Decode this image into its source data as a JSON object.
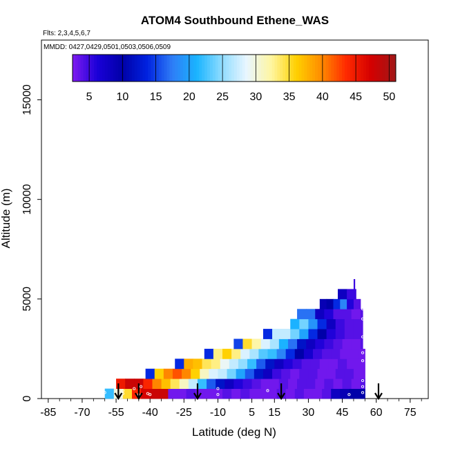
{
  "chart_data": {
    "type": "heatmap",
    "title": "ATOM4 Southbound Ethene_WAS",
    "flights_label": "Flts: 2,3,4,5,6,7",
    "dates_label": "MMDD: 0427,0429,0501,0503,0506,0509",
    "xlabel": "Latitude (deg N)",
    "ylabel": "Altitude (m)",
    "xlim": [
      -88,
      83
    ],
    "ylim": [
      0,
      18000
    ],
    "x_ticks": [
      -85,
      -70,
      -55,
      -40,
      -25,
      -10,
      5,
      15,
      30,
      45,
      60,
      75
    ],
    "y_ticks": [
      0,
      5000,
      10000,
      15000
    ],
    "colorbar": {
      "min": 2.5,
      "max": 51,
      "ticks": [
        5,
        10,
        15,
        20,
        25,
        30,
        35,
        40,
        45,
        50
      ],
      "stops": [
        "#7f1cf0",
        "#1a00d8",
        "#0000a8",
        "#0022e0",
        "#2e7cf6",
        "#1ab4ff",
        "#8fdcff",
        "#e9f6ff",
        "#fff6a0",
        "#ffd000",
        "#ff8c00",
        "#ff2a00",
        "#d40000",
        "#a01818"
      ]
    },
    "layers": [
      {
        "alt_bottom": 0,
        "alt_top": 500,
        "lat_start": -60,
        "lat_end": 55,
        "step": 4,
        "values": [
          22,
          30,
          35,
          44,
          47,
          48,
          48,
          3,
          3,
          4,
          3,
          3,
          3,
          4,
          3,
          4,
          3,
          3,
          3,
          4,
          3,
          4,
          3,
          3,
          4,
          8,
          9,
          10,
          10
        ]
      },
      {
        "alt_bottom": 500,
        "alt_top": 1000,
        "lat_start": -55,
        "lat_end": 55,
        "step": 4,
        "values": [
          45,
          48,
          48,
          44,
          40,
          37,
          34,
          31,
          27,
          22,
          16,
          12,
          8,
          6,
          5,
          4,
          3,
          3,
          4,
          3,
          4,
          4,
          3,
          4,
          3,
          4,
          3,
          4
        ]
      },
      {
        "alt_bottom": 1000,
        "alt_top": 1500,
        "lat_start": -42,
        "lat_end": 55,
        "step": 4,
        "values": [
          14,
          36,
          40,
          42,
          40,
          36,
          31,
          28,
          27,
          24,
          20,
          16,
          12,
          8,
          5,
          4,
          3,
          4,
          4,
          3,
          3,
          4,
          4,
          3,
          3
        ]
      },
      {
        "alt_bottom": 1500,
        "alt_top": 2000,
        "lat_start": -29,
        "lat_end": 55,
        "step": 4,
        "values": [
          14,
          38,
          37,
          34,
          33,
          29,
          27,
          25,
          22,
          16,
          12,
          8,
          6,
          5,
          4,
          4,
          3,
          3,
          4,
          3,
          3,
          3
        ]
      },
      {
        "alt_bottom": 2000,
        "alt_top": 2500,
        "lat_start": -16,
        "lat_end": 55,
        "step": 4,
        "values": [
          14,
          33,
          36,
          33,
          28,
          26,
          23,
          22,
          18,
          14,
          10,
          7,
          5,
          4,
          4,
          3,
          3,
          3
        ]
      },
      {
        "alt_bottom": 2500,
        "alt_top": 3000,
        "lat_start": -3,
        "lat_end": 54,
        "step": 4,
        "values": [
          15,
          35,
          32,
          28,
          26,
          21,
          17,
          12,
          8,
          6,
          5,
          4,
          3,
          3,
          4
        ]
      },
      {
        "alt_bottom": 3000,
        "alt_top": 3500,
        "lat_start": 10,
        "lat_end": 54,
        "step": 4,
        "values": [
          14,
          27,
          27,
          24,
          20,
          14,
          10,
          6,
          5,
          4,
          4
        ]
      },
      {
        "alt_bottom": 3500,
        "alt_top": 4000,
        "lat_start": 22,
        "lat_end": 54,
        "step": 4,
        "values": [
          21,
          24,
          19,
          14,
          8,
          5,
          4,
          4
        ]
      },
      {
        "alt_bottom": 4000,
        "alt_top": 4500,
        "lat_start": 25,
        "lat_end": 54,
        "step": 4,
        "values": [
          17,
          17,
          8,
          6,
          4,
          4,
          3,
          4
        ]
      },
      {
        "alt_bottom": 4500,
        "alt_top": 5000,
        "lat_start": 35,
        "lat_end": 53,
        "step": 3,
        "values": [
          9,
          10,
          14,
          18,
          6,
          4
        ]
      },
      {
        "alt_bottom": 5000,
        "alt_top": 5500,
        "lat_start": 43,
        "lat_end": 51,
        "step": 4,
        "values": [
          8,
          5
        ]
      },
      {
        "alt_bottom": 5500,
        "alt_top": 6000,
        "lat_start": 50,
        "lat_end": 50.5,
        "step": 0.5,
        "values": [
          5
        ]
      }
    ],
    "circles": [
      {
        "lat": -60,
        "alt": 300
      },
      {
        "lat": -52,
        "alt": 400
      },
      {
        "lat": -52,
        "alt": 250
      },
      {
        "lat": -47,
        "alt": 500
      },
      {
        "lat": -45,
        "alt": 200
      },
      {
        "lat": -44,
        "alt": 600
      },
      {
        "lat": -41,
        "alt": 250
      },
      {
        "lat": -40,
        "alt": 200
      },
      {
        "lat": -10,
        "alt": 500
      },
      {
        "lat": -10,
        "alt": 200
      },
      {
        "lat": 12,
        "alt": 400
      },
      {
        "lat": 48,
        "alt": 200
      },
      {
        "lat": 54,
        "alt": 300
      },
      {
        "lat": 54,
        "alt": 600
      },
      {
        "lat": 54,
        "alt": 900
      },
      {
        "lat": 54,
        "alt": 1900
      },
      {
        "lat": 54,
        "alt": 2300
      },
      {
        "lat": 54,
        "alt": 3100
      },
      {
        "lat": 54,
        "alt": 4000
      },
      {
        "lat": 54,
        "alt": 4500
      }
    ],
    "arrows": [
      -54,
      -45,
      -19,
      18,
      61
    ]
  }
}
